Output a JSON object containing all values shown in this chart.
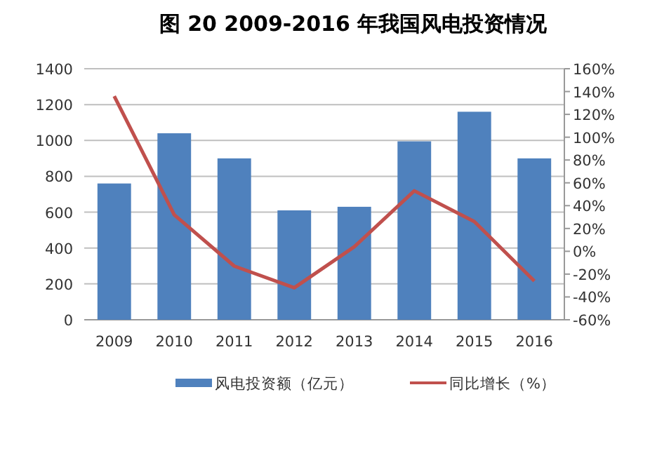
{
  "chart_data": {
    "type": "bar",
    "title": "图 20    2009-2016 年我国风电投资情况",
    "categories": [
      "2009",
      "2010",
      "2011",
      "2012",
      "2013",
      "2014",
      "2015",
      "2016"
    ],
    "series": [
      {
        "name": "风电投资额（亿元）",
        "color": "#4f81bd",
        "values": [
          760,
          1040,
          900,
          610,
          630,
          995,
          1160,
          900
        ]
      },
      {
        "name": "同比增长（%）",
        "color": "#c0504d",
        "type": "line",
        "axis": "y2",
        "values": [
          136,
          32,
          -13,
          -32,
          4,
          53,
          26,
          -26
        ]
      }
    ],
    "ylim": [
      0,
      1400
    ],
    "yticks": [
      0,
      200,
      400,
      600,
      800,
      1000,
      1200,
      1400
    ],
    "y2lim": [
      -60,
      160
    ],
    "y2ticks": [
      {
        "value": -60,
        "label": "-60%"
      },
      {
        "value": -40,
        "label": "-40%"
      },
      {
        "value": -20,
        "label": "-20%"
      },
      {
        "value": 0,
        "label": "0%"
      },
      {
        "value": 20,
        "label": "20%"
      },
      {
        "value": 40,
        "label": "40%"
      },
      {
        "value": 60,
        "label": "60%"
      },
      {
        "value": 80,
        "label": "80%"
      },
      {
        "value": 100,
        "label": "100%"
      },
      {
        "value": 120,
        "label": "120%"
      },
      {
        "value": 140,
        "label": "140%"
      },
      {
        "value": 160,
        "label": "160%"
      }
    ],
    "grid": "y",
    "legend": "bottom"
  }
}
